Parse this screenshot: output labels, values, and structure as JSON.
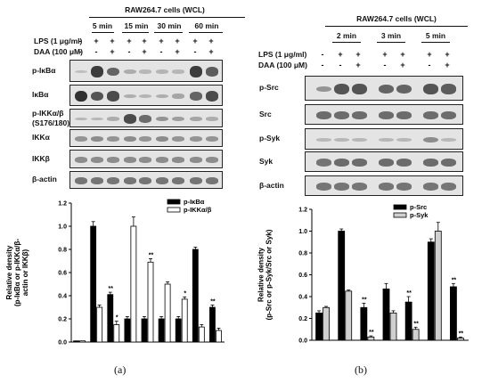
{
  "panel_a": {
    "caption": "(a)",
    "header": "RAW264.7 cells (WCL)",
    "time_groups": [
      "5 min",
      "15 min",
      "30 min",
      "60 min"
    ],
    "treatments": [
      {
        "label": "LPS (1 μg/ml)",
        "signs": [
          "-",
          "+",
          "+",
          "+",
          "+",
          "+",
          "+",
          "+",
          "+"
        ]
      },
      {
        "label": "DAA (100 μM)",
        "signs": [
          "-",
          "-",
          "+",
          "-",
          "+",
          "-",
          "+",
          "-",
          "+"
        ]
      }
    ],
    "blots": [
      {
        "label": "p-IκBα",
        "intensity": [
          0.05,
          0.85,
          0.6,
          0.15,
          0.1,
          0.12,
          0.1,
          0.85,
          0.65
        ]
      },
      {
        "label": "IκBα",
        "intensity": [
          0.9,
          0.7,
          0.75,
          0.15,
          0.12,
          0.15,
          0.2,
          0.6,
          0.75
        ]
      },
      {
        "label": "p-IKKα/β\n(S176/180)",
        "intensity": [
          0.1,
          0.1,
          0.15,
          0.75,
          0.55,
          0.3,
          0.25,
          0.2,
          0.15
        ]
      },
      {
        "label": "IKKα",
        "intensity": [
          0.3,
          0.35,
          0.3,
          0.35,
          0.3,
          0.35,
          0.3,
          0.3,
          0.3
        ]
      },
      {
        "label": "IKKβ",
        "intensity": [
          0.35,
          0.35,
          0.35,
          0.35,
          0.35,
          0.35,
          0.35,
          0.35,
          0.35
        ]
      },
      {
        "label": "β-actin",
        "intensity": [
          0.5,
          0.5,
          0.5,
          0.5,
          0.5,
          0.5,
          0.5,
          0.5,
          0.5
        ]
      }
    ]
  },
  "panel_b": {
    "caption": "(b)",
    "header": "RAW264.7 cells (WCL)",
    "time_groups": [
      "2 min",
      "3 min",
      "5 min"
    ],
    "treatments": [
      {
        "label": "LPS (1 μg/ml)",
        "signs": [
          "-",
          "+",
          "+",
          "+",
          "+",
          "+",
          "+"
        ]
      },
      {
        "label": "DAA (100 μM)",
        "signs": [
          "-",
          "-",
          "+",
          "-",
          "+",
          "-",
          "+"
        ]
      }
    ],
    "blots": [
      {
        "label": "p-Src",
        "intensity": [
          0.3,
          0.7,
          0.7,
          0.6,
          0.6,
          0.7,
          0.65
        ]
      },
      {
        "label": "Src",
        "intensity": [
          0.55,
          0.55,
          0.55,
          0.55,
          0.55,
          0.55,
          0.55
        ]
      },
      {
        "label": "p-Syk",
        "intensity": [
          0.08,
          0.1,
          0.1,
          0.1,
          0.1,
          0.35,
          0.08
        ]
      },
      {
        "label": "Syk",
        "intensity": [
          0.5,
          0.55,
          0.55,
          0.55,
          0.55,
          0.55,
          0.55
        ]
      },
      {
        "label": "β-actin",
        "intensity": [
          0.5,
          0.5,
          0.5,
          0.5,
          0.5,
          0.5,
          0.5
        ]
      }
    ]
  },
  "chart_data": [
    {
      "type": "bar",
      "ylabel": "Relative density\n(p-IκBα or p-IKKα/β-\nactin or IKKβ)",
      "ylim": [
        0,
        1.2
      ],
      "yticks": [
        "0.0",
        "0.2",
        "0.4",
        "0.6",
        "0.8",
        "1.0",
        "1.2"
      ],
      "legend_placement": "top-right",
      "colors": {
        "p-IκBα": "#000000",
        "p-IKKα/β": "#ffffff"
      },
      "series": [
        {
          "name": "p-IκBα",
          "values": [
            0.01,
            1.0,
            0.41,
            0.2,
            0.2,
            0.2,
            0.2,
            0.8,
            0.3
          ],
          "errors": [
            0.0,
            0.04,
            0.02,
            0.02,
            0.02,
            0.02,
            0.02,
            0.02,
            0.02
          ],
          "sig": [
            "",
            "",
            "**",
            "",
            "",
            "",
            "",
            "",
            "**"
          ]
        },
        {
          "name": "p-IKKα/β",
          "values": [
            0.01,
            0.3,
            0.15,
            1.0,
            0.69,
            0.5,
            0.37,
            0.13,
            0.1
          ],
          "errors": [
            0.0,
            0.02,
            0.03,
            0.08,
            0.03,
            0.02,
            0.02,
            0.02,
            0.02
          ],
          "sig": [
            "",
            "",
            "*",
            "",
            "**",
            "",
            "*",
            "",
            ""
          ]
        }
      ]
    },
    {
      "type": "bar",
      "ylabel": "Relative density\n(p-Src or p-Syk/Src or Syk)",
      "ylim": [
        0,
        1.2
      ],
      "yticks": [
        "0.0",
        "0.2",
        "0.4",
        "0.6",
        "0.8",
        "1.0",
        "1.2"
      ],
      "legend_placement": "top-left",
      "colors": {
        "p-Src": "#000000",
        "p-Syk": "#d0d0d0"
      },
      "series": [
        {
          "name": "p-Src",
          "values": [
            0.25,
            1.0,
            0.3,
            0.47,
            0.35,
            0.9,
            0.49
          ],
          "errors": [
            0.02,
            0.02,
            0.04,
            0.05,
            0.05,
            0.03,
            0.03
          ],
          "sig": [
            "",
            "",
            "**",
            "",
            "**",
            "",
            "**"
          ]
        },
        {
          "name": "p-Syk",
          "values": [
            0.3,
            0.45,
            0.03,
            0.25,
            0.1,
            1.0,
            0.02
          ],
          "errors": [
            0.01,
            0.01,
            0.01,
            0.02,
            0.02,
            0.08,
            0.01
          ],
          "sig": [
            "",
            "",
            "**",
            "",
            "**",
            "",
            "**"
          ]
        }
      ]
    }
  ]
}
